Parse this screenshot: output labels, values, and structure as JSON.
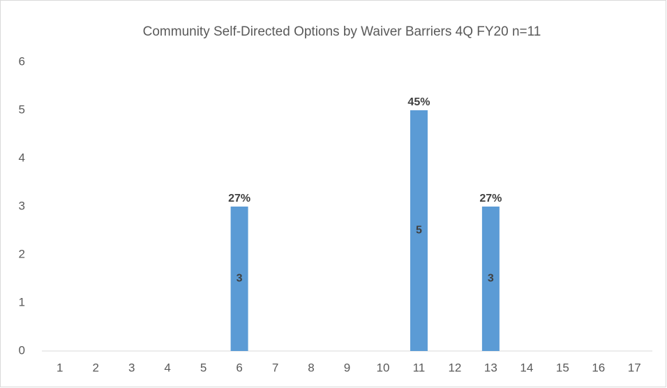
{
  "chart_data": {
    "type": "bar",
    "title": "Community Self-Directed Options by Waiver Barriers  4Q FY20 n=11",
    "categories": [
      "1",
      "2",
      "3",
      "4",
      "5",
      "6",
      "7",
      "8",
      "9",
      "10",
      "11",
      "12",
      "13",
      "14",
      "15",
      "16",
      "17"
    ],
    "values": [
      0,
      0,
      0,
      0,
      0,
      3,
      0,
      0,
      0,
      0,
      5,
      0,
      3,
      0,
      0,
      0,
      0
    ],
    "top_labels": [
      null,
      null,
      null,
      null,
      null,
      "27%",
      null,
      null,
      null,
      null,
      "45%",
      null,
      "27%",
      null,
      null,
      null,
      null
    ],
    "color": "#5b9bd5",
    "ylim": [
      0,
      6
    ],
    "yticks": [
      0,
      1,
      2,
      3,
      4,
      5,
      6
    ],
    "grid": false
  }
}
